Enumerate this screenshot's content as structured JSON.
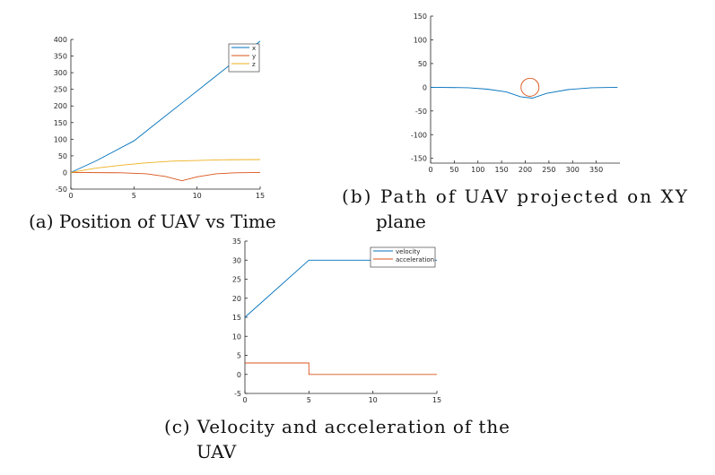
{
  "chart_data": [
    {
      "type": "line",
      "caption": [
        "(a) Position of UAV vs Time"
      ],
      "xlim": [
        0,
        15
      ],
      "ylim": [
        -50,
        400
      ],
      "xticks": [
        0,
        5,
        10,
        15
      ],
      "yticks": [
        -50,
        0,
        50,
        100,
        150,
        200,
        250,
        300,
        350,
        400
      ],
      "legend_position": "top-right",
      "series": [
        {
          "name": "x",
          "color": "#0072BD",
          "x": [
            0,
            2,
            5,
            7,
            9,
            11,
            13,
            15
          ],
          "y": [
            0,
            35,
            95,
            155,
            215,
            275,
            335,
            395
          ]
        },
        {
          "name": "y",
          "color": "#D95319",
          "x": [
            0,
            4,
            6,
            7.5,
            8.8,
            10,
            11.5,
            13,
            15
          ],
          "y": [
            0,
            -1,
            -4,
            -12,
            -25,
            -13,
            -4,
            -1,
            0
          ]
        },
        {
          "name": "z",
          "color": "#EDB120",
          "x": [
            0,
            2,
            4,
            6,
            8,
            10,
            12,
            15
          ],
          "y": [
            0,
            13,
            22,
            29,
            34,
            36,
            38,
            39
          ]
        }
      ]
    },
    {
      "type": "line",
      "caption": [
        "(b) Path of UAV projected on XY",
        "plane"
      ],
      "xlim": [
        0,
        400
      ],
      "ylim": [
        -160,
        150
      ],
      "xticks": [
        0,
        50,
        100,
        150,
        200,
        250,
        300,
        350
      ],
      "yticks": [
        -150,
        -100,
        -50,
        0,
        50,
        100,
        150
      ],
      "series": [
        {
          "name": "path",
          "color": "#0072BD",
          "x": [
            0,
            80,
            120,
            160,
            190,
            215,
            245,
            290,
            340,
            395
          ],
          "y": [
            0,
            -1,
            -4,
            -10,
            -20,
            -23,
            -13,
            -5,
            -1,
            0
          ]
        }
      ],
      "circle": {
        "color": "#D95319",
        "cx": 210,
        "cy": 0,
        "r": 19
      }
    },
    {
      "type": "line",
      "caption": [
        "(c) Velocity and acceleration of the",
        "UAV"
      ],
      "xlim": [
        0,
        15
      ],
      "ylim": [
        -5,
        35
      ],
      "xticks": [
        0,
        5,
        10,
        15
      ],
      "yticks": [
        -5,
        0,
        5,
        10,
        15,
        20,
        25,
        30,
        35
      ],
      "legend_position": "top-right",
      "series": [
        {
          "name": "velocity",
          "color": "#0072BD",
          "x": [
            0,
            5,
            15
          ],
          "y": [
            15,
            30,
            30
          ]
        },
        {
          "name": "acceleration",
          "color": "#D95319",
          "x": [
            0,
            5,
            5,
            15
          ],
          "y": [
            3,
            3,
            0,
            0
          ]
        }
      ]
    }
  ]
}
